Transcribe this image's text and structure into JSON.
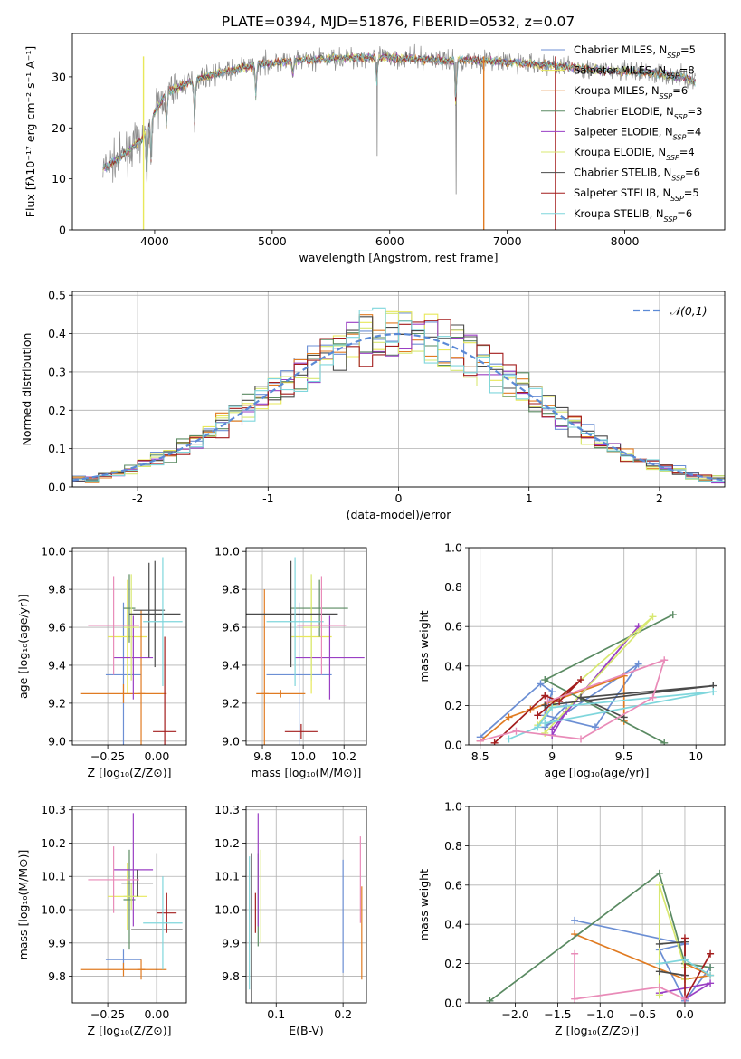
{
  "figure": {
    "title": "PLATE=0394, MJD=51876, FIBERID=0532, z=0.07"
  },
  "models": [
    {
      "name": "Chabrier MILES, N_SSP=5",
      "color": "#6c8fd4"
    },
    {
      "name": "Salpeter MILES, N_SSP=8",
      "color": "#e8e85a"
    },
    {
      "name": "Kroupa MILES, N_SSP=6",
      "color": "#e07b22"
    },
    {
      "name": "Chabrier ELODIE, N_SSP=3",
      "color": "#5a8a62"
    },
    {
      "name": "Salpeter ELODIE, N_SSP=4",
      "color": "#9a3fc4"
    },
    {
      "name": "Kroupa ELODIE, N_SSP=4",
      "color": "#d8e872"
    },
    {
      "name": "Chabrier STELIB, N_SSP=6",
      "color": "#4a4a4a"
    },
    {
      "name": "Salpeter STELIB, N_SSP=5",
      "color": "#a31d1d"
    },
    {
      "name": "Kroupa STELIB, N_SSP=6",
      "color": "#7fd6dc"
    }
  ],
  "chart_data": [
    {
      "id": "spectrum",
      "type": "line",
      "xlabel": "wavelength [Angstrom, rest frame]",
      "ylabel": "Flux [fλ10⁻¹⁷ erg cm⁻² s⁻¹ A⁻¹]",
      "xlim": [
        3300,
        8850
      ],
      "ylim": [
        0,
        38.5
      ],
      "xticks": [
        4000,
        5000,
        6000,
        7000,
        8000
      ],
      "yticks": [
        0,
        10,
        20,
        30
      ],
      "legend_position": "upper right",
      "continuum_x": [
        3560,
        3700,
        3900,
        4000,
        4100,
        4300,
        4500,
        4700,
        4900,
        5100,
        5300,
        5500,
        5700,
        5900,
        6100,
        6300,
        6500,
        6700,
        6900,
        7100,
        7300,
        7500,
        7700,
        7900,
        8100,
        8300,
        8500,
        8600
      ],
      "continuum_y": [
        12,
        14,
        18,
        23,
        27,
        29,
        30.5,
        31.5,
        32.5,
        33,
        33.3,
        33.6,
        33.8,
        33.8,
        33.7,
        33.5,
        33.2,
        33.3,
        33.1,
        32.8,
        32.4,
        32,
        31.5,
        31.2,
        31,
        30.5,
        30,
        29
      ]
    },
    {
      "id": "residual-histogram",
      "type": "bar",
      "xlabel": "(data-model)/error",
      "ylabel": "Normed distribution",
      "xlim": [
        -2.5,
        2.5
      ],
      "ylim": [
        0,
        0.51
      ],
      "xticks": [
        -2,
        -1,
        0,
        1,
        2
      ],
      "yticks": [
        0.0,
        0.1,
        0.2,
        0.3,
        0.4,
        0.5
      ],
      "reference_label": "𝒩(0,1)",
      "reference_color": "#5b8ad6",
      "legend_position": "upper right",
      "bin_width": 0.1
    },
    {
      "id": "age-vs-Z",
      "type": "scatter",
      "xlabel": "Z [log₁₀(Z/Z⊙)]",
      "ylabel": "age  [log₁₀(age/yr)]",
      "xlim": [
        -0.43,
        0.15
      ],
      "ylim": [
        8.98,
        10.02
      ],
      "xticks": [
        -0.25,
        0.0
      ],
      "xtick_labels": [
        "−0.25",
        "0.00"
      ],
      "yticks": [
        9.0,
        9.2,
        9.4,
        9.6,
        9.8,
        10.0
      ],
      "points": [
        {
          "model": 0,
          "x": -0.17,
          "y": 9.35,
          "xerr": 0.09,
          "yerr": 0.38
        },
        {
          "model": 1,
          "x": -0.15,
          "y": 9.55,
          "xerr": 0.1,
          "yerr": 0.3
        },
        {
          "model": 2,
          "x": -0.17,
          "y": 9.25,
          "xerr": 0.22,
          "yerr": 0.05
        },
        {
          "model": 2,
          "x": -0.08,
          "y": 9.25,
          "xerr": 0.02,
          "yerr": 0.44
        },
        {
          "model": 3,
          "x": -0.14,
          "y": 9.7,
          "xerr": 0.03,
          "yerr": 0.18
        },
        {
          "model": 4,
          "x": -0.12,
          "y": 9.44,
          "xerr": 0.1,
          "yerr": 0.22
        },
        {
          "model": 5,
          "x": -0.13,
          "y": 9.6,
          "xerr": 0.04,
          "yerr": 0.28
        },
        {
          "model": 6,
          "x": -0.04,
          "y": 9.69,
          "xerr": 0.08,
          "yerr": 0.25
        },
        {
          "model": 6,
          "x": -0.01,
          "y": 9.67,
          "xerr": 0.13,
          "yerr": 0.28
        },
        {
          "model": 7,
          "x": 0.04,
          "y": 9.05,
          "xerr": 0.06,
          "yerr": 0.5
        },
        {
          "model": 8,
          "x": 0.03,
          "y": 9.63,
          "xerr": 0.1,
          "yerr": 0.34
        },
        {
          "model": 9,
          "x": -0.22,
          "y": 9.61,
          "xerr": 0.13,
          "yerr": 0.26
        }
      ]
    },
    {
      "id": "age-vs-mass",
      "type": "scatter",
      "xlabel": "mass [log₁₀(M/M⊙)]",
      "ylabel": "",
      "xlim": [
        9.72,
        10.31
      ],
      "ylim": [
        8.98,
        10.02
      ],
      "xticks": [
        9.8,
        10.0,
        10.2
      ],
      "xtick_labels": [
        "9.8",
        "10.0",
        "10.2"
      ],
      "yticks": [
        9.0,
        9.2,
        9.4,
        9.6,
        9.8,
        10.0
      ],
      "points": [
        {
          "model": 0,
          "x": 9.98,
          "y": 9.35,
          "xerr": 0.16,
          "yerr": 0.38
        },
        {
          "model": 1,
          "x": 10.04,
          "y": 9.55,
          "xerr": 0.1,
          "yerr": 0.3
        },
        {
          "model": 2,
          "x": 9.81,
          "y": 9.25,
          "xerr": 0.02,
          "yerr": 0.55
        },
        {
          "model": 2,
          "x": 9.89,
          "y": 9.25,
          "xerr": 0.12,
          "yerr": 0.02
        },
        {
          "model": 3,
          "x": 10.08,
          "y": 9.7,
          "xerr": 0.14,
          "yerr": 0.15
        },
        {
          "model": 4,
          "x": 10.13,
          "y": 9.44,
          "xerr": 0.17,
          "yerr": 0.22
        },
        {
          "model": 5,
          "x": 10.04,
          "y": 9.6,
          "xerr": 0.04,
          "yerr": 0.28
        },
        {
          "model": 6,
          "x": 9.94,
          "y": 9.67,
          "xerr": 0.23,
          "yerr": 0.28
        },
        {
          "model": 7,
          "x": 9.99,
          "y": 9.05,
          "xerr": 0.08,
          "yerr": 0.04
        },
        {
          "model": 8,
          "x": 9.96,
          "y": 9.63,
          "xerr": 0.14,
          "yerr": 0.34
        },
        {
          "model": 9,
          "x": 10.09,
          "y": 9.61,
          "xerr": 0.12,
          "yerr": 0.26
        }
      ]
    },
    {
      "id": "mass-weight-vs-age",
      "type": "line",
      "xlabel": "age  [log₁₀(age/yr)]",
      "ylabel": "mass weight",
      "xlim": [
        8.42,
        10.2
      ],
      "ylim": [
        0,
        1.0
      ],
      "xticks": [
        8.5,
        9.0,
        9.5,
        10.0
      ],
      "yticks": [
        0.0,
        0.2,
        0.4,
        0.6,
        0.8,
        1.0
      ],
      "series": [
        {
          "model": 0,
          "x": [
            8.5,
            8.92,
            9.0,
            8.95,
            9.3,
            9.6,
            8.95,
            9.1
          ],
          "y": [
            0.04,
            0.31,
            0.27,
            0.15,
            0.09,
            0.41,
            0.09,
            0.2
          ]
        },
        {
          "model": 2,
          "x": [
            8.5,
            8.7,
            8.85,
            9.0,
            9.5,
            9.5
          ],
          "y": [
            0.02,
            0.14,
            0.18,
            0.22,
            0.35,
            0.12
          ]
        },
        {
          "model": 3,
          "x": [
            9.78,
            8.95,
            9.84
          ],
          "y": [
            0.01,
            0.33,
            0.66
          ]
        },
        {
          "model": 4,
          "x": [
            9.0,
            9.1,
            9.6,
            9.0
          ],
          "y": [
            0.05,
            0.17,
            0.6,
            0.08
          ]
        },
        {
          "model": 5,
          "x": [
            8.9,
            9.0,
            9.7,
            8.95
          ],
          "y": [
            0.1,
            0.2,
            0.65,
            0.06
          ]
        },
        {
          "model": 6,
          "x": [
            9.5,
            9.2,
            10.12,
            8.95
          ],
          "y": [
            0.14,
            0.24,
            0.3,
            0.2
          ]
        },
        {
          "model": 7,
          "x": [
            8.6,
            8.95,
            9.05,
            9.2,
            8.9
          ],
          "y": [
            0.01,
            0.25,
            0.22,
            0.33,
            0.15
          ]
        },
        {
          "model": 8,
          "x": [
            8.7,
            8.9,
            9.0,
            10.12,
            8.95
          ],
          "y": [
            0.03,
            0.09,
            0.19,
            0.27,
            0.11
          ]
        },
        {
          "model": 9,
          "x": [
            8.5,
            8.75,
            9.2,
            9.7,
            9.78,
            8.97
          ],
          "y": [
            0.02,
            0.07,
            0.03,
            0.24,
            0.43,
            0.22
          ]
        }
      ]
    },
    {
      "id": "mass-vs-Z",
      "type": "scatter",
      "xlabel": "Z [log₁₀(Z/Z⊙)]",
      "ylabel": "mass [log₁₀(M/M⊙)]",
      "xlim": [
        -0.43,
        0.15
      ],
      "ylim": [
        9.72,
        10.31
      ],
      "xticks": [
        -0.25,
        0.0
      ],
      "xtick_labels": [
        "−0.25",
        "0.00"
      ],
      "yticks": [
        9.8,
        9.9,
        10.0,
        10.1,
        10.2,
        10.3
      ],
      "points": [
        {
          "model": 0,
          "x": -0.17,
          "y": 9.85,
          "xerr": 0.09,
          "yerr": 0.03
        },
        {
          "model": 1,
          "x": -0.15,
          "y": 10.04,
          "xerr": 0.1,
          "yerr": 0.1
        },
        {
          "model": 2,
          "x": -0.17,
          "y": 9.82,
          "xerr": 0.22,
          "yerr": 0.02
        },
        {
          "model": 2,
          "x": -0.08,
          "y": 9.82,
          "xerr": 0.02,
          "yerr": 0.03
        },
        {
          "model": 3,
          "x": -0.14,
          "y": 10.03,
          "xerr": 0.03,
          "yerr": 0.15
        },
        {
          "model": 4,
          "x": -0.12,
          "y": 10.12,
          "xerr": 0.1,
          "yerr": 0.17
        },
        {
          "model": 5,
          "x": -0.13,
          "y": 10.04,
          "xerr": 0.04,
          "yerr": 0.04
        },
        {
          "model": 6,
          "x": -0.1,
          "y": 10.08,
          "xerr": 0.08,
          "yerr": 0.04
        },
        {
          "model": 6,
          "x": 0.0,
          "y": 9.94,
          "xerr": 0.13,
          "yerr": 0.23
        },
        {
          "model": 7,
          "x": 0.05,
          "y": 9.99,
          "xerr": 0.05,
          "yerr": 0.06
        },
        {
          "model": 8,
          "x": 0.03,
          "y": 9.96,
          "xerr": 0.1,
          "yerr": 0.14
        },
        {
          "model": 9,
          "x": -0.22,
          "y": 10.09,
          "xerr": 0.13,
          "yerr": 0.1
        }
      ]
    },
    {
      "id": "mass-vs-EBV",
      "type": "scatter",
      "xlabel": "E(B-V)",
      "ylabel": "",
      "xlim": [
        0.055,
        0.235
      ],
      "ylim": [
        9.72,
        10.31
      ],
      "xticks": [
        0.1,
        0.2
      ],
      "xtick_labels": [
        "0.1",
        "0.2"
      ],
      "yticks": [
        9.8,
        9.9,
        10.0,
        10.1,
        10.2,
        10.3
      ],
      "points": [
        {
          "model": 0,
          "x": 0.2,
          "y": 9.98,
          "xerr": 0,
          "yerr": 0.17
        },
        {
          "model": 2,
          "x": 0.228,
          "y": 9.93,
          "xerr": 0,
          "yerr": 0.14
        },
        {
          "model": 3,
          "x": 0.073,
          "y": 10.03,
          "xerr": 0,
          "yerr": 0.14
        },
        {
          "model": 4,
          "x": 0.073,
          "y": 10.12,
          "xerr": 0,
          "yerr": 0.17
        },
        {
          "model": 5,
          "x": 0.077,
          "y": 10.04,
          "xerr": 0,
          "yerr": 0.14
        },
        {
          "model": 6,
          "x": 0.063,
          "y": 9.94,
          "xerr": 0,
          "yerr": 0.23
        },
        {
          "model": 7,
          "x": 0.069,
          "y": 9.99,
          "xerr": 0,
          "yerr": 0.06
        },
        {
          "model": 8,
          "x": 0.06,
          "y": 9.96,
          "xerr": 0,
          "yerr": 0.2
        },
        {
          "model": 9,
          "x": 0.226,
          "y": 10.09,
          "xerr": 0,
          "yerr": 0.13
        }
      ]
    },
    {
      "id": "mass-weight-vs-Z",
      "type": "line",
      "xlabel": "Z [log₁₀(Z/Z⊙)]",
      "ylabel": "mass weight",
      "xlim": [
        -2.55,
        0.47
      ],
      "ylim": [
        0,
        1.0
      ],
      "xticks": [
        -2.0,
        -1.5,
        -1.0,
        -0.5,
        0.0
      ],
      "xtick_labels": [
        "−2.0",
        "−1.5",
        "−1.0",
        "−0.5",
        "0.0"
      ],
      "yticks": [
        0.0,
        0.2,
        0.4,
        0.6,
        0.8,
        1.0
      ],
      "series": [
        {
          "model": 0,
          "x": [
            -1.3,
            0.0,
            -0.3,
            0.0,
            0.3
          ],
          "y": [
            0.42,
            0.3,
            0.27,
            0.01,
            0.18
          ]
        },
        {
          "model": 2,
          "x": [
            -1.3,
            0.0,
            0.3,
            0.0
          ],
          "y": [
            0.35,
            0.12,
            0.14,
            0.2
          ]
        },
        {
          "model": 3,
          "x": [
            -2.3,
            -0.3,
            0.0,
            0.3
          ],
          "y": [
            0.01,
            0.66,
            0.2,
            0.18
          ]
        },
        {
          "model": 4,
          "x": [
            -0.3,
            0.3,
            0.0
          ],
          "y": [
            0.05,
            0.1,
            0.02
          ]
        },
        {
          "model": 5,
          "x": [
            -0.3,
            -0.3,
            0.0,
            0.0
          ],
          "y": [
            0.04,
            0.6,
            0.18,
            0.12
          ]
        },
        {
          "model": 6,
          "x": [
            -0.3,
            0.0,
            0.0,
            -0.3
          ],
          "y": [
            0.3,
            0.31,
            0.14,
            0.16
          ]
        },
        {
          "model": 7,
          "x": [
            0.0,
            0.0,
            0.3
          ],
          "y": [
            0.33,
            0.02,
            0.25
          ]
        },
        {
          "model": 8,
          "x": [
            -0.3,
            0.0,
            0.3
          ],
          "y": [
            0.2,
            0.22,
            0.14
          ]
        },
        {
          "model": 9,
          "x": [
            -1.3,
            -1.3,
            -0.3,
            0.0
          ],
          "y": [
            0.25,
            0.02,
            0.08,
            0.02
          ]
        }
      ]
    }
  ]
}
